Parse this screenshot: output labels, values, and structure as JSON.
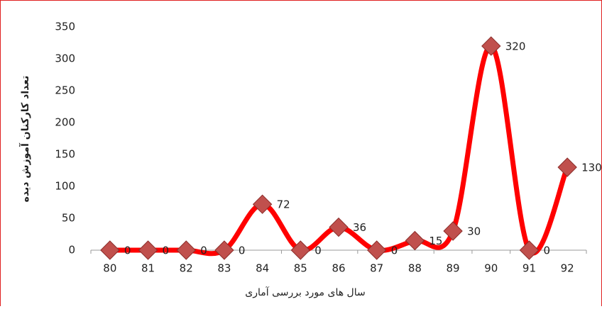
{
  "chart_data": {
    "type": "line",
    "x_label": "سال های مورد بررسی آماری",
    "y_label": "تعداد کارکنان آموزش دیده",
    "categories": [
      "80",
      "81",
      "82",
      "83",
      "84",
      "85",
      "86",
      "87",
      "88",
      "89",
      "90",
      "91",
      "92"
    ],
    "series": [
      {
        "color": "#ff0000",
        "marker_color": "#c0504d",
        "values": [
          0,
          0,
          0,
          0,
          72,
          0,
          36,
          0,
          15,
          30,
          320,
          0,
          130
        ]
      }
    ],
    "ylim": [
      0,
      350
    ],
    "yticks": [
      0,
      50,
      100,
      150,
      200,
      250,
      300,
      350
    ],
    "grid": false,
    "smooth": true,
    "data_labels": true
  }
}
